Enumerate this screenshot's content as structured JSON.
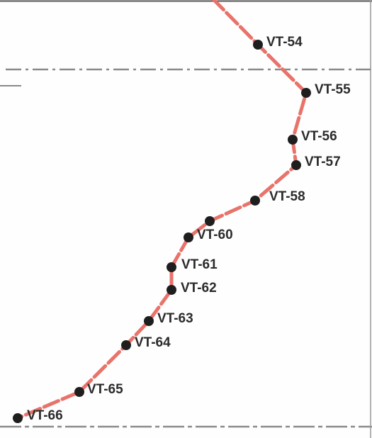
{
  "map": {
    "route": {
      "color": "#e8736b",
      "style": "dashed"
    },
    "station_color": "#1e1e1e",
    "stations": [
      {
        "id": "VT-54",
        "label": "VT-54"
      },
      {
        "id": "VT-55",
        "label": "VT-55"
      },
      {
        "id": "VT-56",
        "label": "VT-56"
      },
      {
        "id": "VT-57",
        "label": "VT-57"
      },
      {
        "id": "VT-58",
        "label": "VT-58"
      },
      {
        "id": "VT-59",
        "label": ""
      },
      {
        "id": "VT-60",
        "label": "VT-60"
      },
      {
        "id": "VT-61",
        "label": "VT-61"
      },
      {
        "id": "VT-62",
        "label": "VT-62"
      },
      {
        "id": "VT-63",
        "label": "VT-63"
      },
      {
        "id": "VT-64",
        "label": "VT-64"
      },
      {
        "id": "VT-65",
        "label": "VT-65"
      },
      {
        "id": "VT-66",
        "label": "VT-66"
      }
    ]
  }
}
